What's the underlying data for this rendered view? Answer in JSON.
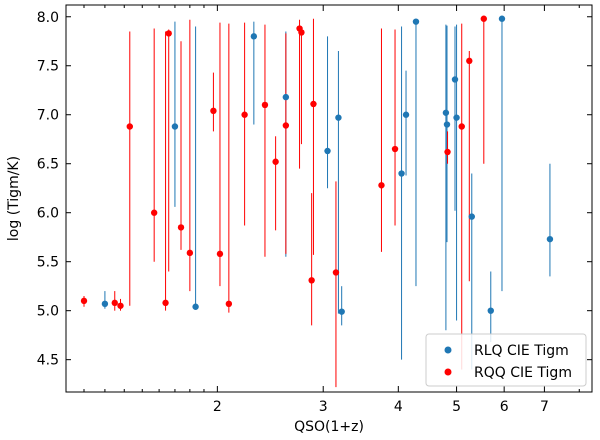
{
  "chart_data": {
    "type": "scatter",
    "title": "",
    "xlabel": "QSO(1+z)",
    "ylabel": "log (Tigm/K)",
    "x_scale": "log",
    "xlim": [
      1.12,
      8.4
    ],
    "ylim": [
      4.17,
      8.12
    ],
    "x_ticks": [
      2,
      3,
      4,
      5,
      6,
      7
    ],
    "y_ticks": [
      4.5,
      5.0,
      5.5,
      6.0,
      6.5,
      7.0,
      7.5,
      8.0
    ],
    "grid": false,
    "legend": {
      "placement": "bottom-right"
    },
    "series": [
      {
        "name": "RLQ CIE Tigm",
        "color": "#1f77b4",
        "points": [
          {
            "x": 1.3,
            "y": 5.07,
            "lo": 5.02,
            "hi": 5.2
          },
          {
            "x": 1.7,
            "y": 6.88,
            "lo": 6.06,
            "hi": 7.95
          },
          {
            "x": 1.84,
            "y": 5.04,
            "lo": 5.02,
            "hi": 7.9
          },
          {
            "x": 2.3,
            "y": 7.8,
            "lo": 6.9,
            "hi": 7.95
          },
          {
            "x": 2.6,
            "y": 7.18,
            "lo": 5.55,
            "hi": 7.85
          },
          {
            "x": 3.05,
            "y": 6.63,
            "lo": 6.25,
            "hi": 7.8
          },
          {
            "x": 3.18,
            "y": 6.97,
            "lo": 4.97,
            "hi": 7.65
          },
          {
            "x": 3.22,
            "y": 4.99,
            "lo": 4.85,
            "hi": 5.25
          },
          {
            "x": 4.05,
            "y": 6.4,
            "lo": 4.5,
            "hi": 7.9
          },
          {
            "x": 4.12,
            "y": 7.0,
            "lo": 6.38,
            "hi": 7.45
          },
          {
            "x": 4.28,
            "y": 7.95,
            "lo": 5.25,
            "hi": 7.97
          },
          {
            "x": 4.8,
            "y": 7.02,
            "lo": 4.8,
            "hi": 7.92
          },
          {
            "x": 4.82,
            "y": 6.9,
            "lo": 5.7,
            "hi": 7.91
          },
          {
            "x": 4.97,
            "y": 7.36,
            "lo": 6.02,
            "hi": 7.9
          },
          {
            "x": 5.0,
            "y": 6.97,
            "lo": 4.9,
            "hi": 7.92
          },
          {
            "x": 5.3,
            "y": 5.96,
            "lo": 4.4,
            "hi": 6.4
          },
          {
            "x": 5.7,
            "y": 5.0,
            "lo": 4.68,
            "hi": 5.4
          },
          {
            "x": 5.95,
            "y": 7.98,
            "lo": 5.2,
            "hi": 8.0
          },
          {
            "x": 7.15,
            "y": 5.73,
            "lo": 5.35,
            "hi": 6.5
          }
        ]
      },
      {
        "name": "RQQ CIE Tigm",
        "color": "#ff0000",
        "points": [
          {
            "x": 1.2,
            "y": 5.1,
            "lo": 5.04,
            "hi": 5.15
          },
          {
            "x": 1.35,
            "y": 5.08,
            "lo": 5.0,
            "hi": 5.2
          },
          {
            "x": 1.38,
            "y": 5.05,
            "lo": 5.0,
            "hi": 5.12
          },
          {
            "x": 1.43,
            "y": 6.88,
            "lo": 5.05,
            "hi": 7.85
          },
          {
            "x": 1.57,
            "y": 6.0,
            "lo": 5.5,
            "hi": 7.88
          },
          {
            "x": 1.64,
            "y": 5.08,
            "lo": 5.0,
            "hi": 7.85
          },
          {
            "x": 1.66,
            "y": 7.83,
            "lo": 5.4,
            "hi": 7.87
          },
          {
            "x": 1.74,
            "y": 5.85,
            "lo": 5.62,
            "hi": 7.75
          },
          {
            "x": 1.8,
            "y": 5.59,
            "lo": 5.2,
            "hi": 7.97
          },
          {
            "x": 1.97,
            "y": 7.04,
            "lo": 6.83,
            "hi": 7.43
          },
          {
            "x": 2.02,
            "y": 5.58,
            "lo": 5.25,
            "hi": 7.94
          },
          {
            "x": 2.09,
            "y": 5.07,
            "lo": 4.98,
            "hi": 7.93
          },
          {
            "x": 2.22,
            "y": 7.0,
            "lo": 5.87,
            "hi": 7.94
          },
          {
            "x": 2.4,
            "y": 7.1,
            "lo": 5.55,
            "hi": 7.92
          },
          {
            "x": 2.5,
            "y": 6.52,
            "lo": 5.82,
            "hi": 6.78
          },
          {
            "x": 2.6,
            "y": 6.89,
            "lo": 5.58,
            "hi": 7.83
          },
          {
            "x": 2.74,
            "y": 7.88,
            "lo": 6.45,
            "hi": 7.97
          },
          {
            "x": 2.76,
            "y": 7.84,
            "lo": 6.7,
            "hi": 7.9
          },
          {
            "x": 2.87,
            "y": 5.31,
            "lo": 4.85,
            "hi": 6.2
          },
          {
            "x": 2.89,
            "y": 7.11,
            "lo": 5.57,
            "hi": 7.98
          },
          {
            "x": 3.15,
            "y": 5.39,
            "lo": 4.22,
            "hi": 6.32
          },
          {
            "x": 3.75,
            "y": 6.28,
            "lo": 5.6,
            "hi": 7.88
          },
          {
            "x": 3.95,
            "y": 6.65,
            "lo": 5.87,
            "hi": 7.87
          },
          {
            "x": 4.83,
            "y": 6.62,
            "lo": 6.5,
            "hi": 6.83
          },
          {
            "x": 5.1,
            "y": 6.88,
            "lo": 4.4,
            "hi": 7.93
          },
          {
            "x": 5.25,
            "y": 7.55,
            "lo": 5.3,
            "hi": 7.65
          },
          {
            "x": 5.55,
            "y": 7.98,
            "lo": 6.5,
            "hi": 8.0
          }
        ]
      }
    ]
  }
}
